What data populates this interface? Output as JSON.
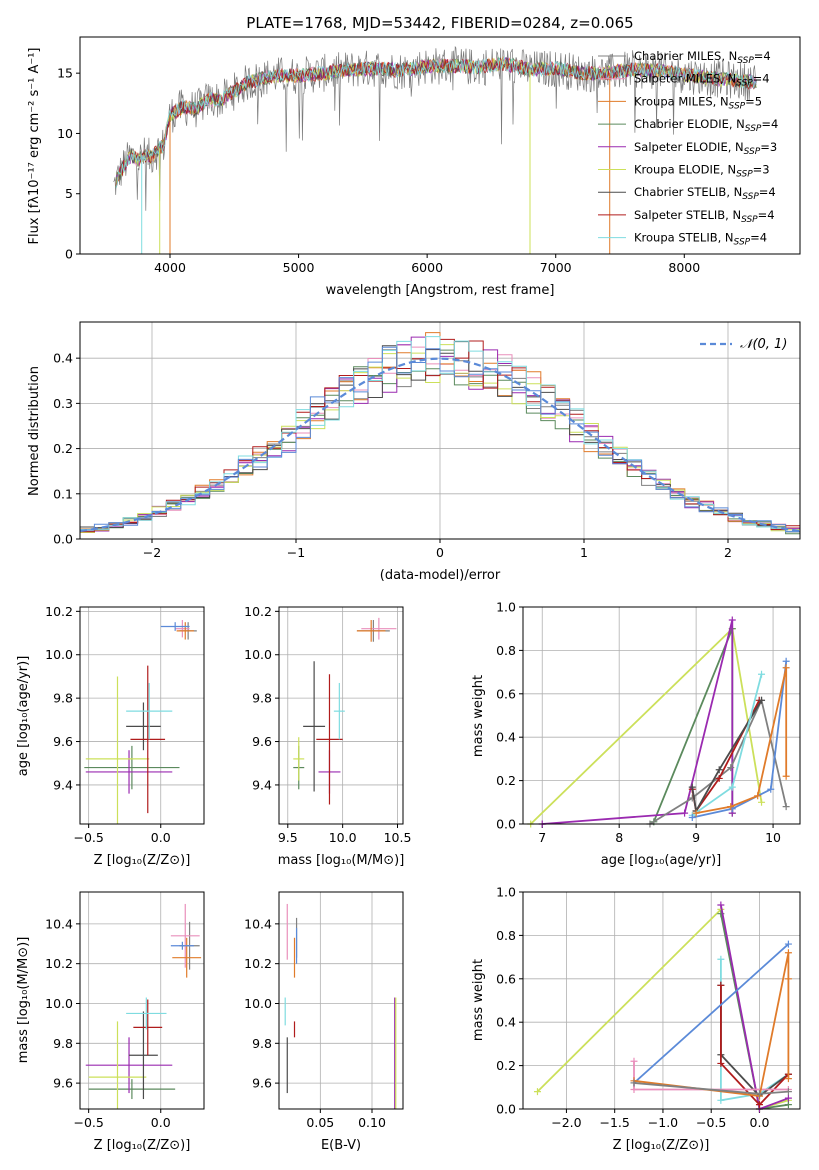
{
  "colors": {
    "Chabrier MILES": "#808080",
    "Salpeter MILES": "#e98fbb",
    "Kroupa MILES": "#e07b2a",
    "Chabrier ELODIE": "#5b8a5d",
    "Salpeter ELODIE": "#9a2ab0",
    "Kroupa ELODIE": "#cce05a",
    "Chabrier STELIB": "#4b4b4b",
    "Salpeter STELIB": "#b01c1c",
    "Kroupa STELIB": "#7fdce0",
    "normal": "#5b8ad8",
    "blue": "#5b8ad8"
  },
  "chart_data": [
    {
      "id": "spectrum",
      "type": "line",
      "title": "PLATE=1768, MJD=53442, FIBERID=0284, z=0.065",
      "xlabel": "wavelength [Angstrom, rest frame]",
      "ylabel": "Flux [fλ10⁻¹⁷ erg cm⁻² s⁻¹ A⁻¹]",
      "xlim": [
        3300,
        8900
      ],
      "ylim": [
        0,
        18
      ],
      "xticks": [
        4000,
        5000,
        6000,
        7000,
        8000
      ],
      "yticks": [
        0,
        5,
        10,
        15
      ],
      "legend_position": "upper right",
      "legend": [
        "Chabrier MILES, N_SSP=4",
        "Salpeter MILES, N_SSP=4",
        "Kroupa MILES, N_SSP=5",
        "Chabrier ELODIE, N_SSP=4",
        "Salpeter ELODIE, N_SSP=3",
        "Kroupa ELODIE, N_SSP=3",
        "Chabrier STELIB, N_SSP=4",
        "Salpeter STELIB, N_SSP=4",
        "Kroupa STELIB, N_SSP=4"
      ],
      "continuum": {
        "x": [
          3560,
          3600,
          3650,
          3700,
          3750,
          3800,
          3850,
          3900,
          3950,
          4000,
          4100,
          4200,
          4300,
          4400,
          4500,
          4600,
          4800,
          5000,
          5200,
          5400,
          5600,
          5800,
          6000,
          6200,
          6400,
          6600,
          6800,
          7000,
          7200,
          7400,
          7600,
          7800,
          8000,
          8200,
          8400,
          8600
        ],
        "y": [
          5.5,
          6.5,
          7.5,
          8.2,
          7.8,
          8.2,
          8.0,
          8.6,
          9.0,
          11.5,
          12.2,
          12.0,
          12.8,
          12.8,
          13.5,
          14.2,
          14.8,
          14.8,
          15.0,
          15.3,
          15.4,
          15.2,
          15.6,
          15.6,
          15.5,
          15.8,
          15.3,
          15.4,
          15.0,
          15.0,
          15.3,
          15.2,
          14.9,
          14.6,
          14.4,
          14.2
        ]
      }
    },
    {
      "id": "residuals",
      "type": "line",
      "xlabel": "(data-model)/error",
      "ylabel": "Normed distribution",
      "xlim": [
        -2.5,
        2.5
      ],
      "ylim": [
        0,
        0.48
      ],
      "xticks": [
        -2,
        -1,
        0,
        1,
        2
      ],
      "yticks": [
        0.0,
        0.1,
        0.2,
        0.3,
        0.4
      ],
      "grid": true,
      "legend": [
        "𝒩(0, 1)"
      ],
      "legend_position": "upper right",
      "bin_width": 0.1
    },
    {
      "id": "Z-age",
      "type": "scatter",
      "xlabel": "Z [log₁₀(Z/Z⊙)]",
      "ylabel": "age  [log₁₀(age/yr)]",
      "xlim": [
        -0.56,
        0.3
      ],
      "ylim": [
        9.22,
        10.22
      ],
      "xticks": [
        -0.5,
        0.0
      ],
      "yticks": [
        9.4,
        9.6,
        9.8,
        10.0,
        10.2
      ],
      "grid": true,
      "points": [
        {
          "model": "Chabrier MILES",
          "x": 0.19,
          "y": 10.11,
          "xerr": 0.06,
          "yerr": 0.04
        },
        {
          "model": "Salpeter MILES",
          "x": 0.15,
          "y": 10.12,
          "xerr": 0.05,
          "yerr": 0.04
        },
        {
          "model": "Kroupa MILES",
          "x": 0.17,
          "y": 10.11,
          "xerr": 0.06,
          "yerr": 0.04
        },
        {
          "model": "Chabrier ELODIE",
          "x": -0.2,
          "y": 9.48,
          "xerr": 0.33,
          "yerr": 0.1
        },
        {
          "model": "Salpeter ELODIE",
          "x": -0.22,
          "y": 9.46,
          "xerr": 0.3,
          "yerr": 0.1
        },
        {
          "model": "Kroupa ELODIE",
          "x": -0.3,
          "y": 9.52,
          "xerr": 0.22,
          "yerr": 0.38
        },
        {
          "model": "Chabrier STELIB",
          "x": -0.12,
          "y": 9.67,
          "xerr": 0.12,
          "yerr": 0.11
        },
        {
          "model": "Salpeter STELIB",
          "x": -0.09,
          "y": 9.61,
          "xerr": 0.12,
          "yerr": 0.34
        },
        {
          "model": "Kroupa STELIB",
          "x": -0.08,
          "y": 9.74,
          "xerr": 0.16,
          "yerr": 0.13
        },
        {
          "model": "blue",
          "x": 0.1,
          "y": 10.13,
          "xerr": 0.1,
          "yerr": 0.02
        }
      ]
    },
    {
      "id": "mass-age",
      "type": "scatter",
      "xlabel": "mass [log₁₀(M/M⊙)]",
      "xlim": [
        9.42,
        10.55
      ],
      "ylim": [
        9.22,
        10.22
      ],
      "xticks": [
        9.5,
        10.0,
        10.5
      ],
      "yticks": [
        9.4,
        9.6,
        9.8,
        10.0,
        10.2
      ],
      "grid": true,
      "points": [
        {
          "model": "Chabrier MILES",
          "x": 10.28,
          "y": 10.11,
          "xerr": 0.15,
          "yerr": 0.05
        },
        {
          "model": "Salpeter MILES",
          "x": 10.33,
          "y": 10.12,
          "xerr": 0.16,
          "yerr": 0.05
        },
        {
          "model": "Kroupa MILES",
          "x": 10.26,
          "y": 10.11,
          "xerr": 0.13,
          "yerr": 0.05
        },
        {
          "model": "Chabrier ELODIE",
          "x": 9.6,
          "y": 9.48,
          "xerr": 0.05,
          "yerr": 0.1
        },
        {
          "model": "Salpeter ELODIE",
          "x": 9.88,
          "y": 9.46,
          "xerr": 0.1,
          "yerr": 0.1
        },
        {
          "model": "Kroupa ELODIE",
          "x": 9.6,
          "y": 9.52,
          "xerr": 0.05,
          "yerr": 0.1
        },
        {
          "model": "Chabrier STELIB",
          "x": 9.74,
          "y": 9.67,
          "xerr": 0.1,
          "yerr": 0.3
        },
        {
          "model": "Salpeter STELIB",
          "x": 9.88,
          "y": 9.61,
          "xerr": 0.12,
          "yerr": 0.3
        },
        {
          "model": "Kroupa STELIB",
          "x": 9.97,
          "y": 9.74,
          "xerr": 0.05,
          "yerr": 0.13
        }
      ]
    },
    {
      "id": "age-weight",
      "type": "line",
      "xlabel": "age  [log₁₀(age/yr)]",
      "ylabel": "mass weight",
      "xlim": [
        6.75,
        10.35
      ],
      "ylim": [
        0,
        1.0
      ],
      "xticks": [
        7,
        8,
        9,
        10
      ],
      "yticks": [
        0.0,
        0.2,
        0.4,
        0.6,
        0.8,
        1.0
      ],
      "grid": true,
      "series": [
        {
          "model": "Kroupa ELODIE",
          "x": [
            6.85,
            9.47,
            9.85
          ],
          "y": [
            0.0,
            0.9,
            0.1
          ]
        },
        {
          "model": "Chabrier ELODIE",
          "x": [
            8.45,
            9.47,
            9.47
          ],
          "y": [
            0.01,
            0.9,
            0.05
          ]
        },
        {
          "model": "Salpeter ELODIE",
          "x": [
            7.0,
            8.85,
            9.47,
            9.47
          ],
          "y": [
            0.0,
            0.05,
            0.94,
            0.05
          ]
        },
        {
          "model": "Chabrier MILES",
          "x": [
            8.4,
            8.95,
            9.45,
            9.85,
            10.17
          ],
          "y": [
            0.0,
            0.12,
            0.26,
            0.57,
            0.08
          ]
        },
        {
          "model": "Salpeter STELIB",
          "x": [
            8.95,
            9.0,
            9.3,
            9.82
          ],
          "y": [
            0.16,
            0.06,
            0.21,
            0.57
          ]
        },
        {
          "model": "Chabrier STELIB",
          "x": [
            8.95,
            9.0,
            9.3,
            9.85
          ],
          "y": [
            0.17,
            0.06,
            0.25,
            0.57
          ]
        },
        {
          "model": "Kroupa STELIB",
          "x": [
            8.95,
            9.47,
            9.85
          ],
          "y": [
            0.04,
            0.17,
            0.69
          ]
        },
        {
          "model": "blue",
          "x": [
            8.95,
            9.47,
            9.97,
            10.17
          ],
          "y": [
            0.03,
            0.07,
            0.16,
            0.75
          ]
        },
        {
          "model": "Kroupa MILES",
          "x": [
            9.0,
            9.45,
            9.8,
            10.17,
            10.17
          ],
          "y": [
            0.05,
            0.08,
            0.13,
            0.72,
            0.22
          ]
        }
      ]
    },
    {
      "id": "Z-mass",
      "type": "scatter",
      "xlabel": "Z [log₁₀(Z/Z⊙)]",
      "ylabel": "mass [log₁₀(M/M⊙)]",
      "xlim": [
        -0.56,
        0.3
      ],
      "ylim": [
        9.47,
        10.56
      ],
      "xticks": [
        -0.5,
        0.0
      ],
      "yticks": [
        9.6,
        9.8,
        10.0,
        10.2,
        10.4
      ],
      "grid": true,
      "points": [
        {
          "model": "Chabrier MILES",
          "x": 0.2,
          "y": 10.29,
          "xerr": 0.07,
          "yerr": 0.12
        },
        {
          "model": "Salpeter MILES",
          "x": 0.17,
          "y": 10.34,
          "xerr": 0.1,
          "yerr": 0.16
        },
        {
          "model": "Kroupa MILES",
          "x": 0.18,
          "y": 10.23,
          "xerr": 0.1,
          "yerr": 0.1
        },
        {
          "model": "blue",
          "x": 0.15,
          "y": 10.29,
          "xerr": 0.08,
          "yerr": 0.02
        },
        {
          "model": "Chabrier ELODIE",
          "x": -0.2,
          "y": 9.57,
          "xerr": 0.3,
          "yerr": 0.05
        },
        {
          "model": "Salpeter ELODIE",
          "x": -0.22,
          "y": 9.69,
          "xerr": 0.3,
          "yerr": 0.14
        },
        {
          "model": "Kroupa ELODIE",
          "x": -0.3,
          "y": 9.63,
          "xerr": 0.2,
          "yerr": 0.28
        },
        {
          "model": "Chabrier STELIB",
          "x": -0.12,
          "y": 9.74,
          "xerr": 0.1,
          "yerr": 0.22
        },
        {
          "model": "Salpeter STELIB",
          "x": -0.09,
          "y": 9.88,
          "xerr": 0.1,
          "yerr": 0.14
        },
        {
          "model": "Kroupa STELIB",
          "x": -0.1,
          "y": 9.95,
          "xerr": 0.14,
          "yerr": 0.08
        }
      ]
    },
    {
      "id": "ebv-mass",
      "type": "scatter",
      "xlabel": "E(B-V)",
      "xlim": [
        0.01,
        0.13
      ],
      "ylim": [
        9.47,
        10.56
      ],
      "xticks": [
        0.05,
        0.1
      ],
      "yticks": [
        9.6,
        9.8,
        10.0,
        10.2,
        10.4
      ],
      "grid": true,
      "points": [
        {
          "model": "Salpeter MILES",
          "x": 0.018,
          "y": 10.36,
          "yerr": 0.14
        },
        {
          "model": "Kroupa MILES",
          "x": 0.025,
          "y": 10.23,
          "yerr": 0.1
        },
        {
          "model": "Chabrier MILES",
          "x": 0.027,
          "y": 10.33,
          "yerr": 0.1
        },
        {
          "model": "blue",
          "x": 0.027,
          "y": 10.29,
          "yerr": 0.09
        },
        {
          "model": "Kroupa STELIB",
          "x": 0.016,
          "y": 9.96,
          "yerr": 0.07
        },
        {
          "model": "Salpeter STELIB",
          "x": 0.025,
          "y": 9.87,
          "yerr": 0.04
        },
        {
          "model": "Chabrier STELIB",
          "x": 0.018,
          "y": 9.69,
          "yerr": 0.14
        },
        {
          "model": "Salpeter ELODIE",
          "x": 0.122,
          "y": 9.73,
          "yerr": 0.3
        },
        {
          "model": "Kroupa ELODIE",
          "x": 0.123,
          "y": 9.72,
          "yerr": 0.31
        }
      ]
    },
    {
      "id": "Z-weight",
      "type": "line",
      "xlabel": "Z [log₁₀(Z/Z⊙)]",
      "ylabel": "mass weight",
      "xlim": [
        -2.45,
        0.42
      ],
      "ylim": [
        0,
        1.0
      ],
      "xticks": [
        -2.0,
        -1.5,
        -1.0,
        -0.5,
        0.0
      ],
      "yticks": [
        0.0,
        0.2,
        0.4,
        0.6,
        0.8,
        1.0
      ],
      "grid": true,
      "series": [
        {
          "model": "Kroupa ELODIE",
          "x": [
            -2.3,
            -0.4,
            0.0,
            0.3
          ],
          "y": [
            0.08,
            0.92,
            0.0,
            0.04
          ]
        },
        {
          "model": "Chabrier ELODIE",
          "x": [
            -0.4,
            0.0,
            0.3
          ],
          "y": [
            0.9,
            0.0,
            0.02
          ]
        },
        {
          "model": "Salpeter ELODIE",
          "x": [
            -0.4,
            0.0,
            0.3
          ],
          "y": [
            0.94,
            0.0,
            0.05
          ]
        },
        {
          "model": "Kroupa STELIB",
          "x": [
            -0.4,
            -0.4,
            0.0,
            0.3
          ],
          "y": [
            0.69,
            0.04,
            0.07,
            0.16
          ]
        },
        {
          "model": "Chabrier STELIB",
          "x": [
            -0.4,
            -0.4,
            0.0,
            0.3
          ],
          "y": [
            0.57,
            0.25,
            0.06,
            0.16
          ]
        },
        {
          "model": "Salpeter STELIB",
          "x": [
            -0.4,
            -0.4,
            0.0,
            0.3
          ],
          "y": [
            0.57,
            0.21,
            0.02,
            0.16
          ]
        },
        {
          "model": "Salpeter MILES",
          "x": [
            -1.3,
            -1.3,
            0.3
          ],
          "y": [
            0.22,
            0.09,
            0.09
          ]
        },
        {
          "model": "blue",
          "x": [
            -1.3,
            0.3
          ],
          "y": [
            0.12,
            0.76
          ]
        },
        {
          "model": "Kroupa MILES",
          "x": [
            -1.3,
            0.0,
            0.3,
            0.3,
            0.3
          ],
          "y": [
            0.13,
            0.06,
            0.72,
            0.6,
            0.14
          ]
        },
        {
          "model": "Chabrier MILES",
          "x": [
            -1.3,
            0.0,
            0.3
          ],
          "y": [
            0.12,
            0.07,
            0.08
          ]
        }
      ]
    }
  ]
}
